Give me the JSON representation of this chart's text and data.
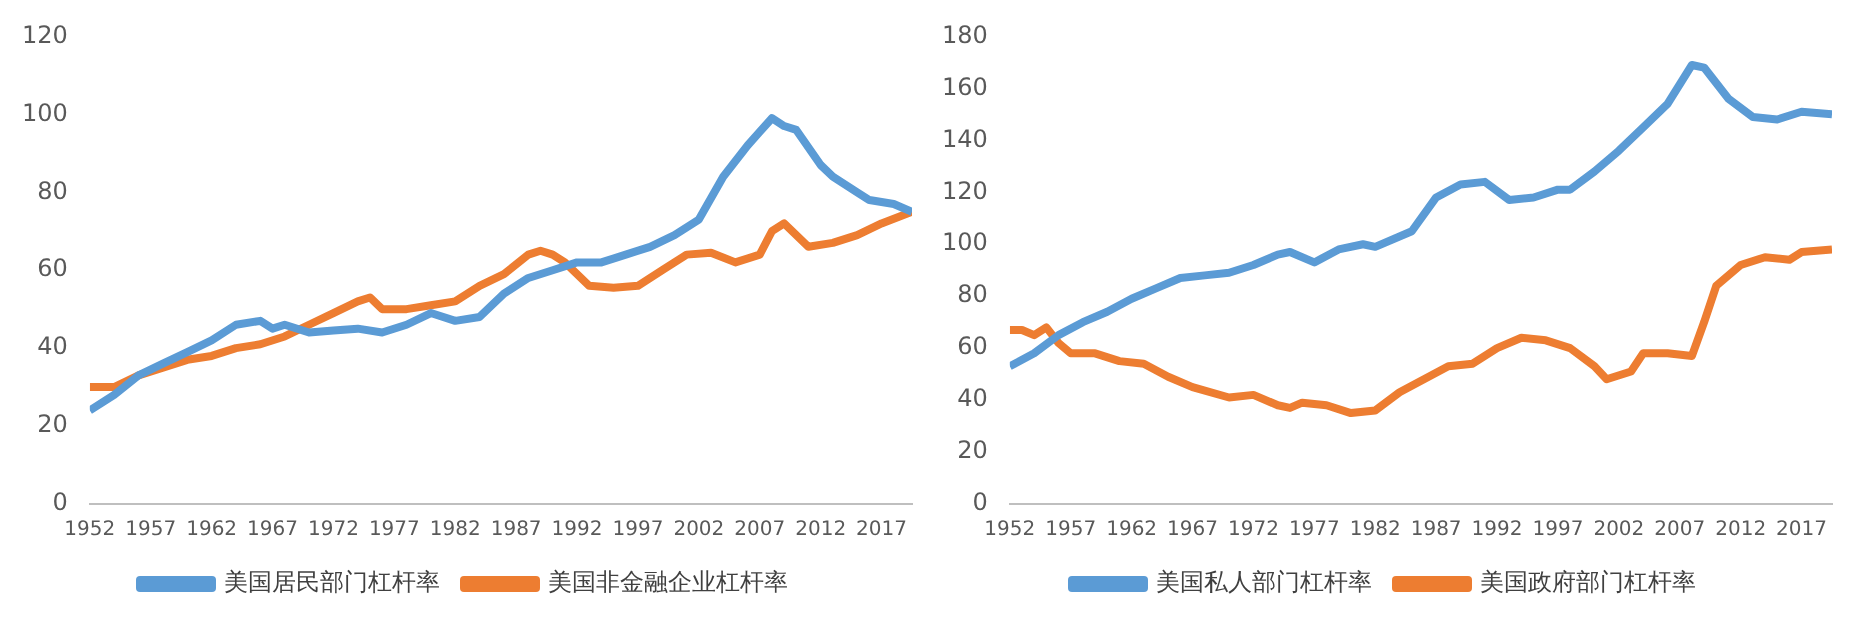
{
  "chart_data": [
    {
      "type": "line",
      "xlim": [
        1952,
        2019.5
      ],
      "xticks": [
        1952,
        1957,
        1962,
        1967,
        1972,
        1977,
        1982,
        1987,
        1992,
        1997,
        2002,
        2007,
        2012,
        2017
      ],
      "ylim": [
        0,
        120
      ],
      "yticks": [
        0,
        20,
        40,
        60,
        80,
        100,
        120
      ],
      "grid": false,
      "legend": "bottom",
      "marker": "none",
      "line_style": "solid",
      "series": [
        {
          "name": "美国居民部门杠杆率",
          "color": "#5b9bd5",
          "x": [
            1952,
            1954,
            1956,
            1958,
            1960,
            1962,
            1964,
            1966,
            1967,
            1968,
            1970,
            1972,
            1974,
            1976,
            1978,
            1980,
            1982,
            1984,
            1986,
            1988,
            1990,
            1992,
            1994,
            1996,
            1998,
            2000,
            2002,
            2004,
            2006,
            2008,
            2009,
            2010,
            2012,
            2013,
            2015,
            2016,
            2018,
            2019.5
          ],
          "values": [
            24,
            28,
            33,
            36,
            39,
            42,
            46,
            47,
            45,
            46,
            44,
            44.5,
            45,
            44,
            46,
            49,
            47,
            48,
            54,
            58,
            60,
            62,
            62,
            64,
            66,
            69,
            73,
            84,
            92,
            99,
            97,
            96,
            87,
            84,
            80,
            78,
            77,
            75
          ]
        },
        {
          "name": "美国非金融企业杠杆率",
          "color": "#ed7d31",
          "x": [
            1952,
            1954,
            1956,
            1958,
            1960,
            1962,
            1964,
            1966,
            1968,
            1970,
            1972,
            1974,
            1975,
            1976,
            1978,
            1980,
            1982,
            1984,
            1986,
            1988,
            1989,
            1990,
            1991,
            1993,
            1995,
            1997,
            1999,
            2001,
            2003,
            2005,
            2007,
            2008,
            2009,
            2011,
            2013,
            2015,
            2017,
            2019.5
          ],
          "values": [
            30,
            30,
            33,
            35,
            37,
            38,
            40,
            41,
            43,
            46,
            49,
            52,
            53,
            50,
            50,
            51,
            52,
            56,
            59,
            64,
            65,
            64,
            62,
            56,
            55.5,
            56,
            60,
            64,
            64.5,
            62,
            64,
            70,
            72,
            66,
            67,
            69,
            72,
            75
          ]
        }
      ]
    },
    {
      "type": "line",
      "xlim": [
        1952,
        2019.5
      ],
      "xticks": [
        1952,
        1957,
        1962,
        1967,
        1972,
        1977,
        1982,
        1987,
        1992,
        1997,
        2002,
        2007,
        2012,
        2017
      ],
      "ylim": [
        0,
        180
      ],
      "yticks": [
        0,
        20,
        40,
        60,
        80,
        100,
        120,
        140,
        160,
        180
      ],
      "grid": false,
      "legend": "bottom",
      "marker": "none",
      "line_style": "solid",
      "series": [
        {
          "name": "美国私人部门杠杆率",
          "color": "#5b9bd5",
          "x": [
            1952,
            1954,
            1956,
            1958,
            1960,
            1962,
            1964,
            1966,
            1968,
            1970,
            1972,
            1974,
            1975,
            1977,
            1979,
            1981,
            1982,
            1985,
            1987,
            1989,
            1991,
            1993,
            1995,
            1997,
            1998,
            2000,
            2002,
            2004,
            2006,
            2008,
            2009,
            2011,
            2013,
            2015,
            2017,
            2019.5
          ],
          "values": [
            53,
            58,
            65,
            70,
            74,
            79,
            83,
            87,
            88,
            89,
            92,
            96,
            97,
            93,
            98,
            100,
            99,
            105,
            118,
            123,
            124,
            117,
            118,
            121,
            121,
            128,
            136,
            145,
            154,
            169,
            168,
            156,
            149,
            148,
            151,
            150
          ]
        },
        {
          "name": "美国政府部门杠杆率",
          "color": "#ed7d31",
          "x": [
            1952,
            1953,
            1954,
            1955,
            1956,
            1957,
            1959,
            1961,
            1963,
            1965,
            1967,
            1970,
            1972,
            1974,
            1975,
            1976,
            1978,
            1980,
            1982,
            1984,
            1986,
            1988,
            1990,
            1992,
            1994,
            1996,
            1998,
            2000,
            2001,
            2003,
            2004,
            2006,
            2008,
            2009,
            2010,
            2012,
            2014,
            2016,
            2017,
            2019.5
          ],
          "values": [
            67,
            67,
            65,
            68,
            62,
            58,
            58,
            55,
            54,
            49,
            45,
            41,
            42,
            38,
            37,
            39,
            38,
            35,
            36,
            43,
            48,
            53,
            54,
            60,
            64,
            63,
            60,
            53,
            48,
            51,
            58,
            58,
            57,
            70,
            84,
            92,
            95,
            94,
            97,
            98
          ]
        }
      ]
    }
  ]
}
